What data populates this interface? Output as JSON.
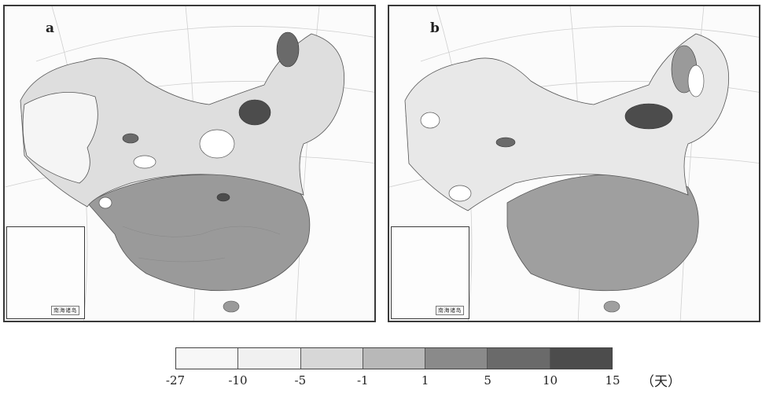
{
  "panels": [
    {
      "label": "a",
      "inset_label": "南海诸岛"
    },
    {
      "label": "b",
      "inset_label": "南海诸岛"
    }
  ],
  "legend": {
    "ticks": [
      "-27",
      "-10",
      "-5",
      "-1",
      "1",
      "5",
      "10",
      "15"
    ],
    "unit": "（天）",
    "colors": [
      "#f7f7f7",
      "#f0f0f0",
      "#d7d7d7",
      "#b8b8b8",
      "#8a8a8a",
      "#6a6a6a",
      "#4c4c4c"
    ]
  }
}
